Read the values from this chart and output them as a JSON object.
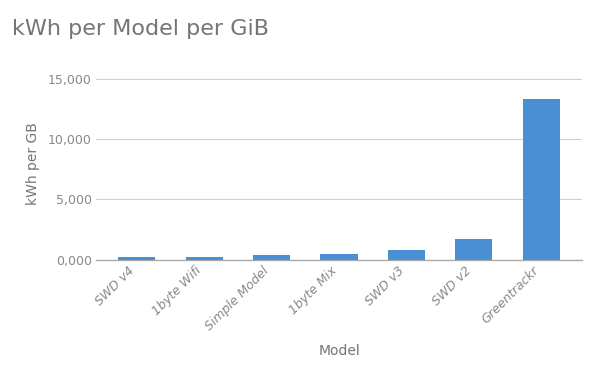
{
  "title": "kWh per Model per GiB",
  "xlabel": "Model",
  "ylabel": "kWh per GB",
  "categories": [
    "SWD v4",
    "1byte Wifi",
    "Simple Model",
    "1byte Mix",
    "SWD v3",
    "SWD v2",
    "Greentrackr"
  ],
  "values": [
    200,
    210,
    370,
    480,
    780,
    1750,
    13300
  ],
  "bar_color": "#4A8FD4",
  "ylim": [
    0,
    16000
  ],
  "ytick_values": [
    0,
    5000,
    10000,
    15000
  ],
  "ytick_labels": [
    "0,000",
    "5,000",
    "10,000",
    "15,000"
  ],
  "background_color": "#ffffff",
  "title_fontsize": 16,
  "label_fontsize": 10,
  "tick_fontsize": 9,
  "title_color": "#757575",
  "axis_label_color": "#757575",
  "tick_label_color": "#888888",
  "grid_color": "#d0d0d0"
}
